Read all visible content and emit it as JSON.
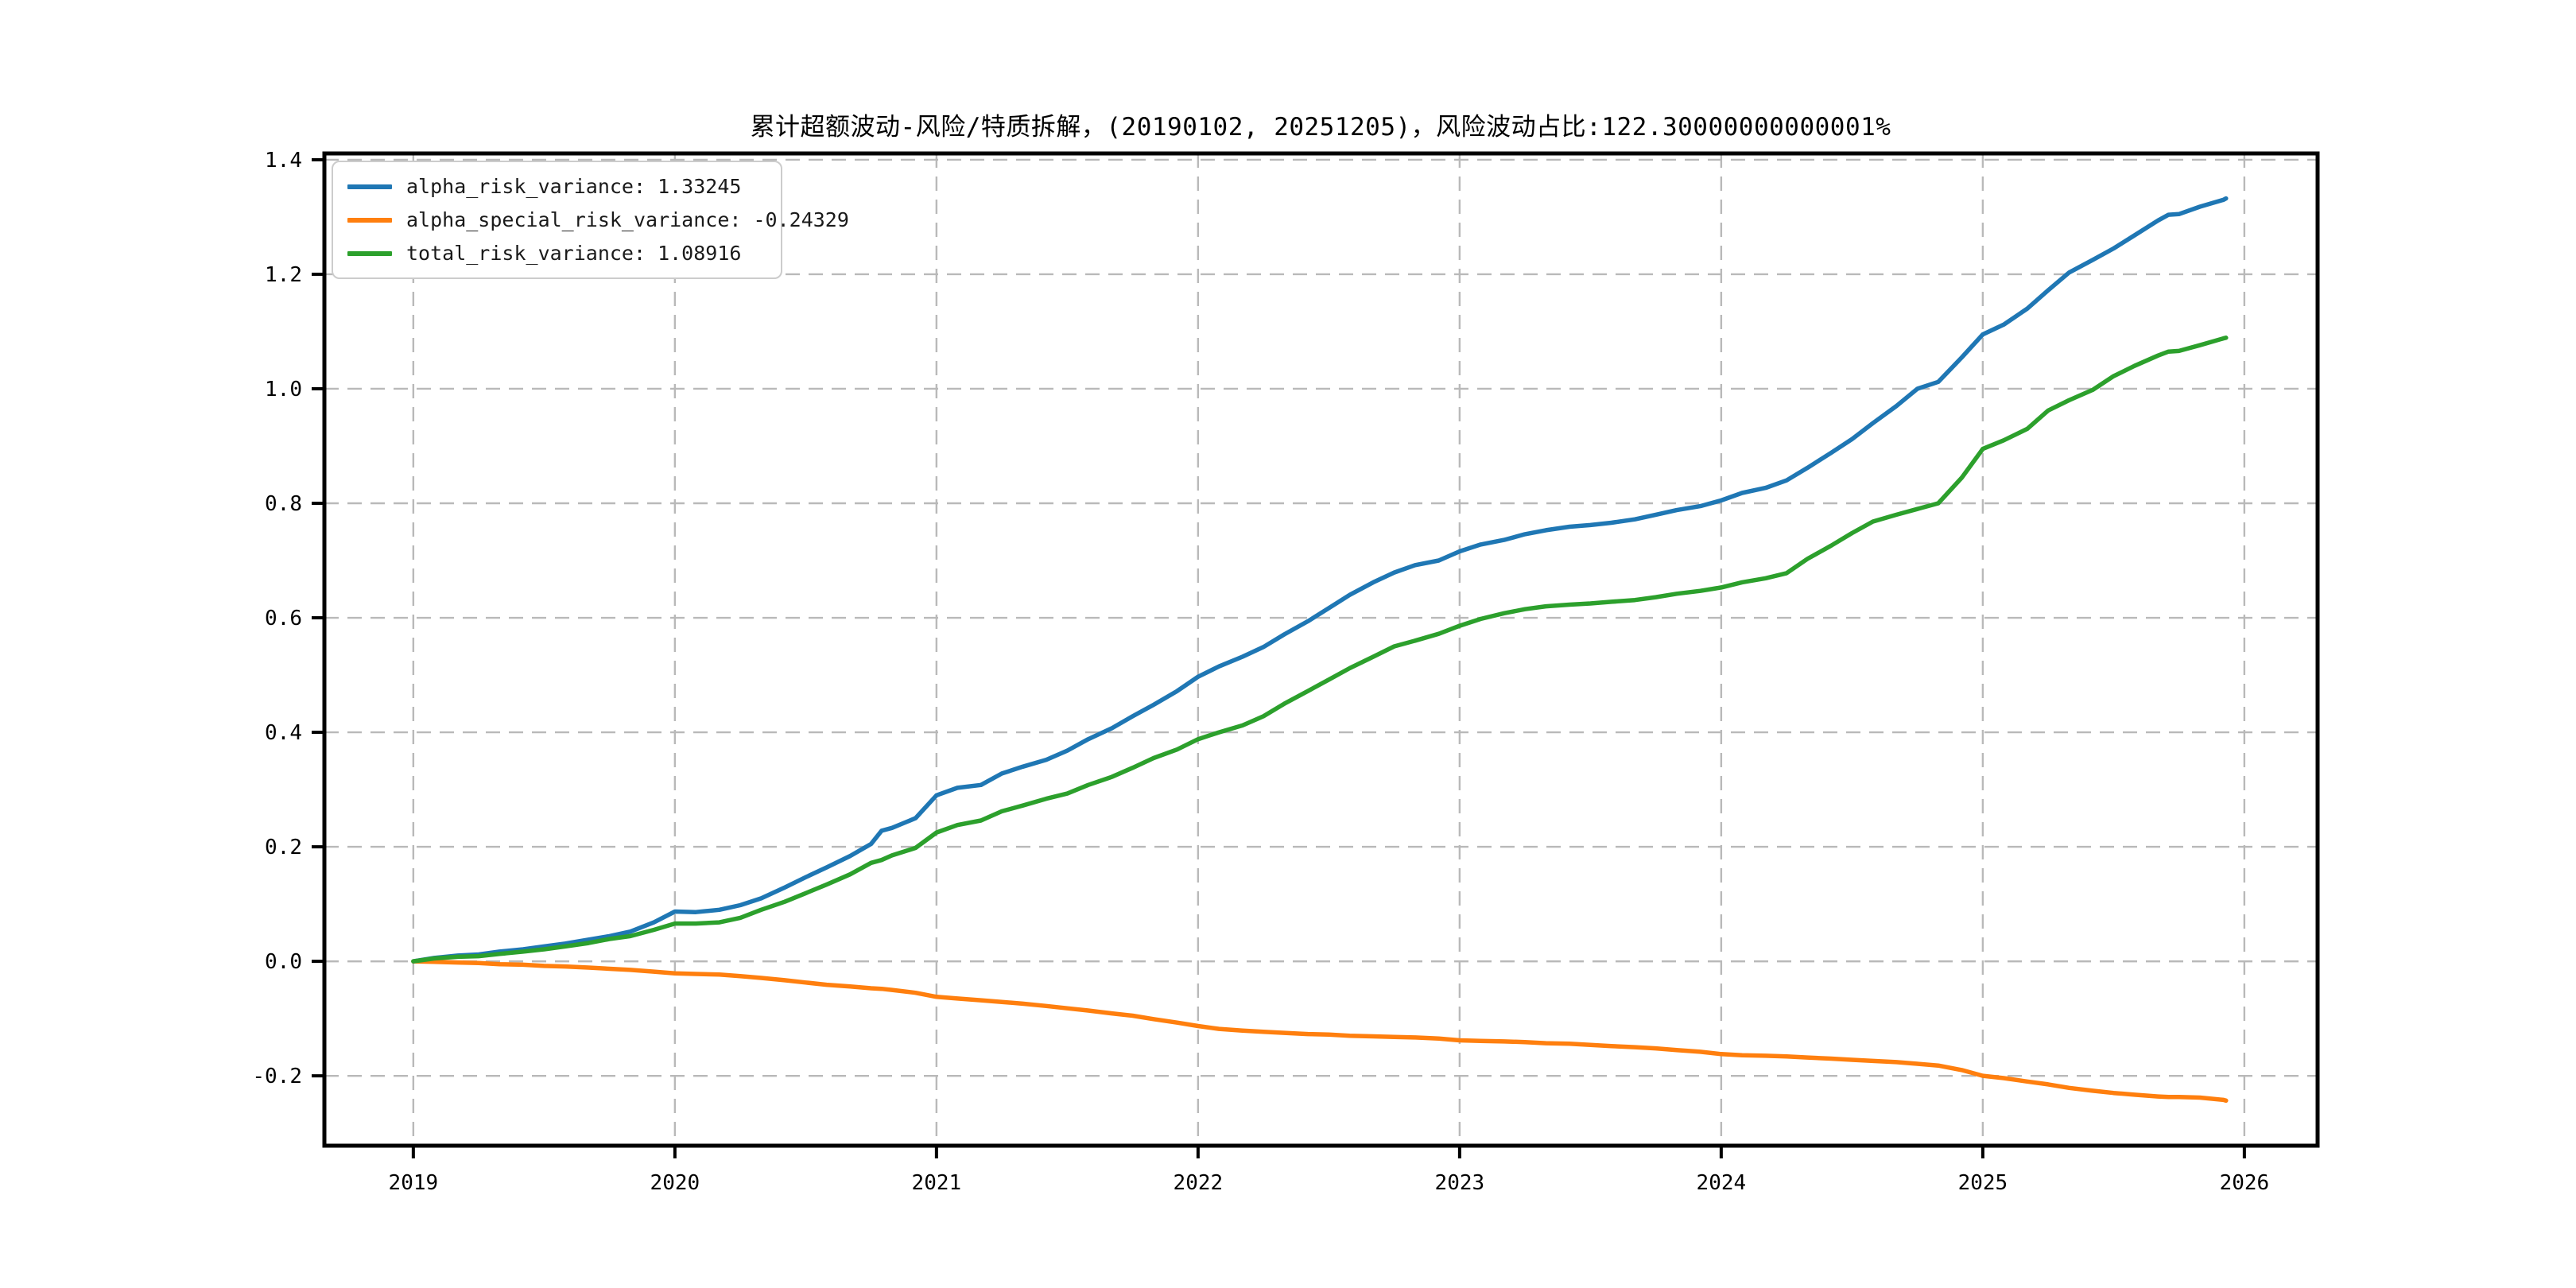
{
  "chart_data": {
    "type": "line",
    "title": "累计超额波动-风险/特质拆解，(20190102, 20251205)，风险波动占比:122.30000000000001%",
    "xlabel": "",
    "ylabel": "",
    "background_color": "#ffffff",
    "axis": {
      "x_range": [
        2018.66,
        2026.28
      ],
      "y_range": [
        -0.322,
        1.411
      ],
      "x_ticks": [
        2019,
        2020,
        2021,
        2022,
        2023,
        2024,
        2025,
        2026
      ],
      "x_tick_labels": [
        "2019",
        "2020",
        "2021",
        "2022",
        "2023",
        "2024",
        "2025",
        "2026"
      ],
      "y_ticks": [
        -0.2,
        0.0,
        0.2,
        0.4,
        0.6,
        0.8,
        1.0,
        1.2,
        1.4
      ],
      "y_tick_labels": [
        "-0.2",
        "0.0",
        "0.2",
        "0.4",
        "0.6",
        "0.8",
        "1.0",
        "1.2",
        "1.4"
      ],
      "grid": "dashed-both",
      "grid_color": "#b9b9b9",
      "spine_color": "#000000"
    },
    "legend": {
      "position": "upper-left",
      "border_color": "#cccccc",
      "entries": [
        "alpha_risk_variance: 1.33245",
        "alpha_special_risk_variance: -0.24329",
        "total_risk_variance: 1.08916"
      ]
    },
    "x": [
      2019.0,
      2019.08,
      2019.17,
      2019.25,
      2019.33,
      2019.42,
      2019.5,
      2019.58,
      2019.67,
      2019.75,
      2019.83,
      2019.92,
      2020.0,
      2020.08,
      2020.17,
      2020.25,
      2020.33,
      2020.42,
      2020.5,
      2020.58,
      2020.67,
      2020.75,
      2020.79,
      2020.83,
      2020.92,
      2021.0,
      2021.08,
      2021.17,
      2021.25,
      2021.33,
      2021.42,
      2021.5,
      2021.58,
      2021.67,
      2021.75,
      2021.83,
      2021.92,
      2022.0,
      2022.08,
      2022.17,
      2022.25,
      2022.33,
      2022.42,
      2022.5,
      2022.58,
      2022.67,
      2022.75,
      2022.83,
      2022.92,
      2023.0,
      2023.08,
      2023.17,
      2023.25,
      2023.33,
      2023.42,
      2023.5,
      2023.58,
      2023.67,
      2023.75,
      2023.83,
      2023.92,
      2024.0,
      2024.08,
      2024.17,
      2024.25,
      2024.33,
      2024.42,
      2024.5,
      2024.58,
      2024.67,
      2024.75,
      2024.83,
      2024.92,
      2025.0,
      2025.08,
      2025.17,
      2025.25,
      2025.33,
      2025.42,
      2025.5,
      2025.58,
      2025.67,
      2025.71,
      2025.75,
      2025.83,
      2025.92,
      2025.93
    ],
    "series": [
      {
        "name": "alpha_risk_variance",
        "legend_label": "alpha_risk_variance: 1.33245",
        "end_value": 1.33245,
        "color": "#1f77b4",
        "values": [
          0.0,
          0.006,
          0.01,
          0.012,
          0.017,
          0.021,
          0.026,
          0.031,
          0.038,
          0.044,
          0.052,
          0.068,
          0.087,
          0.086,
          0.09,
          0.098,
          0.11,
          0.129,
          0.147,
          0.164,
          0.184,
          0.205,
          0.228,
          0.233,
          0.25,
          0.29,
          0.303,
          0.308,
          0.328,
          0.34,
          0.352,
          0.368,
          0.388,
          0.407,
          0.428,
          0.448,
          0.472,
          0.497,
          0.515,
          0.532,
          0.549,
          0.571,
          0.594,
          0.617,
          0.64,
          0.662,
          0.679,
          0.692,
          0.7,
          0.716,
          0.728,
          0.736,
          0.746,
          0.753,
          0.759,
          0.762,
          0.766,
          0.772,
          0.78,
          0.788,
          0.795,
          0.805,
          0.818,
          0.827,
          0.84,
          0.862,
          0.888,
          0.912,
          0.94,
          0.97,
          1.0,
          1.012,
          1.055,
          1.095,
          1.112,
          1.14,
          1.172,
          1.203,
          1.225,
          1.245,
          1.268,
          1.294,
          1.304,
          1.305,
          1.318,
          1.33,
          1.33245
        ]
      },
      {
        "name": "alpha_special_risk_variance",
        "legend_label": "alpha_special_risk_variance: -0.24329",
        "end_value": -0.24329,
        "color": "#ff7f0e",
        "values": [
          0.0,
          -0.001,
          -0.002,
          -0.003,
          -0.005,
          -0.006,
          -0.008,
          -0.009,
          -0.011,
          -0.013,
          -0.015,
          -0.018,
          -0.021,
          -0.022,
          -0.023,
          -0.026,
          -0.029,
          -0.033,
          -0.037,
          -0.041,
          -0.044,
          -0.047,
          -0.048,
          -0.05,
          -0.055,
          -0.062,
          -0.065,
          -0.068,
          -0.071,
          -0.074,
          -0.078,
          -0.082,
          -0.086,
          -0.091,
          -0.095,
          -0.101,
          -0.107,
          -0.113,
          -0.118,
          -0.121,
          -0.123,
          -0.125,
          -0.127,
          -0.128,
          -0.13,
          -0.131,
          -0.132,
          -0.133,
          -0.135,
          -0.138,
          -0.139,
          -0.14,
          -0.141,
          -0.143,
          -0.144,
          -0.146,
          -0.148,
          -0.15,
          -0.152,
          -0.155,
          -0.158,
          -0.162,
          -0.164,
          -0.165,
          -0.166,
          -0.168,
          -0.17,
          -0.172,
          -0.174,
          -0.176,
          -0.179,
          -0.182,
          -0.19,
          -0.2,
          -0.204,
          -0.21,
          -0.215,
          -0.221,
          -0.226,
          -0.23,
          -0.233,
          -0.236,
          -0.237,
          -0.237,
          -0.238,
          -0.242,
          -0.24329
        ]
      },
      {
        "name": "total_risk_variance",
        "legend_label": "total_risk_variance: 1.08916",
        "end_value": 1.08916,
        "color": "#2ca02c",
        "values": [
          0.0,
          0.005,
          0.008,
          0.009,
          0.013,
          0.017,
          0.021,
          0.026,
          0.032,
          0.039,
          0.044,
          0.055,
          0.066,
          0.066,
          0.068,
          0.076,
          0.09,
          0.104,
          0.119,
          0.134,
          0.152,
          0.172,
          0.177,
          0.185,
          0.198,
          0.225,
          0.238,
          0.246,
          0.262,
          0.272,
          0.284,
          0.293,
          0.308,
          0.322,
          0.338,
          0.355,
          0.37,
          0.388,
          0.4,
          0.412,
          0.428,
          0.45,
          0.472,
          0.492,
          0.512,
          0.532,
          0.55,
          0.56,
          0.572,
          0.586,
          0.598,
          0.608,
          0.615,
          0.62,
          0.623,
          0.625,
          0.628,
          0.631,
          0.636,
          0.642,
          0.647,
          0.653,
          0.662,
          0.669,
          0.678,
          0.703,
          0.726,
          0.748,
          0.768,
          0.78,
          0.79,
          0.8,
          0.845,
          0.895,
          0.91,
          0.93,
          0.962,
          0.98,
          0.998,
          1.022,
          1.04,
          1.058,
          1.065,
          1.066,
          1.076,
          1.088,
          1.08916
        ]
      }
    ]
  }
}
